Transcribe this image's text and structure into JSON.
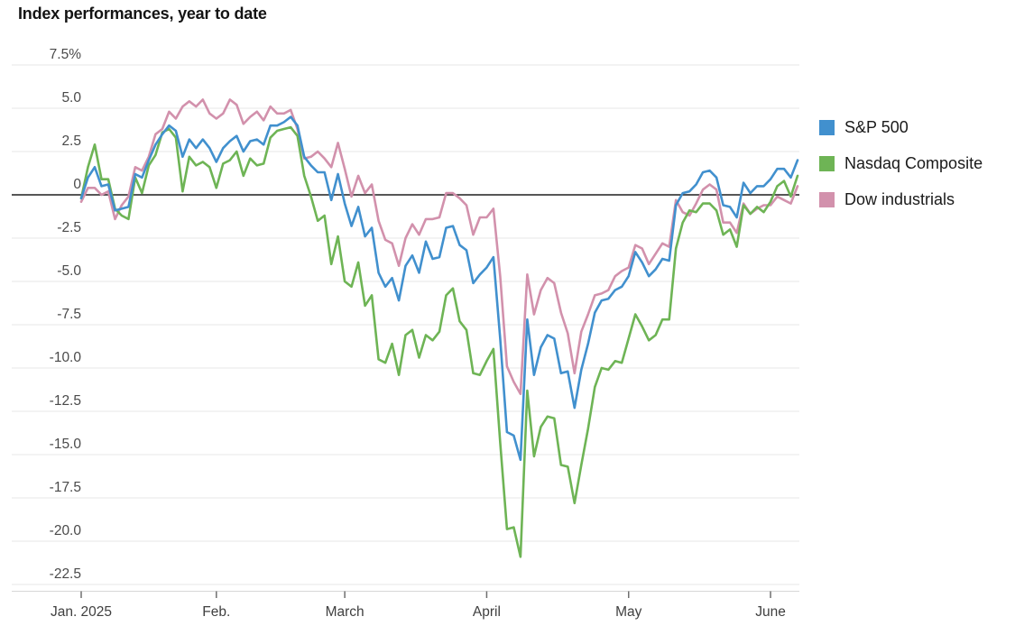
{
  "title": "Index performances, year to date",
  "legend": {
    "items": [
      {
        "label": "S&P 500",
        "color": "#4190ce"
      },
      {
        "label": "Nasdaq Composite",
        "color": "#6eb455"
      },
      {
        "label": "Dow industrials",
        "color": "#d291ac"
      }
    ]
  },
  "chart_data": {
    "type": "line",
    "title": "Index performances, year to date",
    "xlabel": "",
    "ylabel": "",
    "ylim": [
      -22.5,
      7.5
    ],
    "grid": true,
    "zero_line": true,
    "legend_position": "right",
    "x_unit": "daily values, trading days Jan. 2 2025 through June 6 2025 (107 points per series)",
    "x_tick_labels": [
      "Jan. 2025",
      "Feb.",
      "March",
      "April",
      "May",
      "June"
    ],
    "x_tick_indices": [
      0,
      20,
      39,
      60,
      81,
      102
    ],
    "y_ticks": [
      7.5,
      5,
      2.5,
      0,
      -2.5,
      -5,
      -7.5,
      -10,
      -12.5,
      -15,
      -17.5,
      -20,
      -22.5
    ],
    "y_tick_labels": [
      "7.5%",
      "5.0",
      "2.5",
      "0",
      "-2.5",
      "-5.0",
      "-7.5",
      "-10.0",
      "-12.5",
      "-15.0",
      "-17.5",
      "-20.0",
      "-22.5"
    ],
    "series": [
      {
        "name": "S&P 500",
        "color": "#4190ce",
        "values": [
          -0.2,
          1.0,
          1.6,
          0.5,
          0.6,
          -0.9,
          -0.8,
          -0.7,
          1.2,
          1.0,
          2.0,
          2.9,
          3.5,
          4.0,
          3.7,
          2.2,
          3.2,
          2.7,
          3.2,
          2.7,
          1.9,
          2.7,
          3.1,
          3.4,
          2.5,
          3.1,
          3.2,
          2.9,
          4.0,
          4.0,
          4.2,
          4.5,
          4.0,
          2.2,
          1.7,
          1.3,
          1.3,
          -0.3,
          1.2,
          -0.5,
          -1.8,
          -0.7,
          -2.4,
          -1.9,
          -4.5,
          -5.3,
          -4.8,
          -6.1,
          -4.1,
          -3.5,
          -4.5,
          -2.7,
          -3.7,
          -3.6,
          -1.9,
          -1.8,
          -2.9,
          -3.2,
          -5.1,
          -4.6,
          -4.2,
          -3.6,
          -8.3,
          -13.7,
          -13.9,
          -15.3,
          -7.2,
          -10.4,
          -8.8,
          -8.1,
          -8.3,
          -10.3,
          -10.2,
          -12.3,
          -10.1,
          -8.6,
          -6.8,
          -6.1,
          -6.0,
          -5.5,
          -5.3,
          -4.7,
          -3.3,
          -3.9,
          -4.7,
          -4.3,
          -3.7,
          -3.8,
          -0.6,
          0.1,
          0.2,
          0.6,
          1.3,
          1.4,
          1.0,
          -0.6,
          -0.7,
          -1.3,
          0.7,
          0.1,
          0.5,
          0.5,
          0.9,
          1.5,
          1.5,
          1.0,
          2.0
        ]
      },
      {
        "name": "Nasdaq Composite",
        "color": "#6eb455",
        "values": [
          -0.2,
          1.6,
          2.9,
          0.9,
          0.9,
          -0.8,
          -1.2,
          -1.4,
          1.0,
          0.1,
          1.7,
          2.3,
          3.6,
          3.8,
          3.3,
          0.2,
          2.2,
          1.7,
          1.9,
          1.6,
          0.4,
          1.8,
          2.0,
          2.5,
          1.1,
          2.1,
          1.7,
          1.8,
          3.3,
          3.7,
          3.8,
          3.9,
          3.4,
          1.1,
          -0.1,
          -1.5,
          -1.2,
          -4.0,
          -2.4,
          -5.0,
          -5.3,
          -3.9,
          -6.4,
          -5.8,
          -9.5,
          -9.7,
          -8.6,
          -10.4,
          -8.1,
          -7.8,
          -9.4,
          -8.1,
          -8.4,
          -7.9,
          -5.8,
          -5.4,
          -7.3,
          -7.8,
          -10.3,
          -10.4,
          -9.6,
          -8.9,
          -14.3,
          -19.3,
          -19.2,
          -20.9,
          -11.3,
          -15.1,
          -13.4,
          -12.8,
          -12.9,
          -15.6,
          -15.7,
          -17.8,
          -15.6,
          -13.5,
          -11.1,
          -10.0,
          -10.1,
          -9.6,
          -9.7,
          -8.3,
          -6.9,
          -7.6,
          -8.4,
          -8.1,
          -7.2,
          -7.2,
          -3.1,
          -1.6,
          -0.9,
          -1.0,
          -0.5,
          -0.5,
          -0.9,
          -2.3,
          -2.0,
          -3.0,
          -0.6,
          -1.1,
          -0.7,
          -1.0,
          -0.4,
          0.5,
          0.8,
          -0.1,
          1.1
        ]
      },
      {
        "name": "Dow industrials",
        "color": "#d291ac",
        "values": [
          -0.4,
          0.4,
          0.4,
          0.0,
          0.2,
          -1.4,
          -0.6,
          -0.1,
          1.6,
          1.4,
          2.2,
          3.5,
          3.8,
          4.8,
          4.4,
          5.1,
          5.4,
          5.1,
          5.5,
          4.7,
          4.4,
          4.7,
          5.5,
          5.2,
          4.1,
          4.5,
          4.8,
          4.3,
          5.1,
          4.7,
          4.7,
          4.9,
          3.8,
          2.1,
          2.2,
          2.5,
          2.1,
          1.6,
          3.0,
          1.5,
          -0.1,
          1.1,
          0.1,
          0.6,
          -1.5,
          -2.6,
          -2.8,
          -4.1,
          -2.5,
          -1.7,
          -2.3,
          -1.4,
          -1.4,
          -1.3,
          0.1,
          0.1,
          -0.2,
          -0.6,
          -2.3,
          -1.3,
          -1.3,
          -0.8,
          -4.7,
          -9.9,
          -10.8,
          -11.5,
          -4.6,
          -6.9,
          -5.5,
          -4.8,
          -5.1,
          -6.8,
          -8.0,
          -10.3,
          -7.9,
          -6.9,
          -5.8,
          -5.7,
          -5.5,
          -4.7,
          -4.4,
          -4.2,
          -2.9,
          -3.1,
          -4.0,
          -3.4,
          -2.8,
          -3.0,
          -0.3,
          -1.0,
          -1.2,
          -0.5,
          0.3,
          0.6,
          0.3,
          -1.6,
          -1.6,
          -2.2,
          -0.5,
          -1.1,
          -0.8,
          -0.6,
          -0.6,
          -0.1,
          -0.3,
          -0.5,
          0.5
        ]
      }
    ]
  }
}
